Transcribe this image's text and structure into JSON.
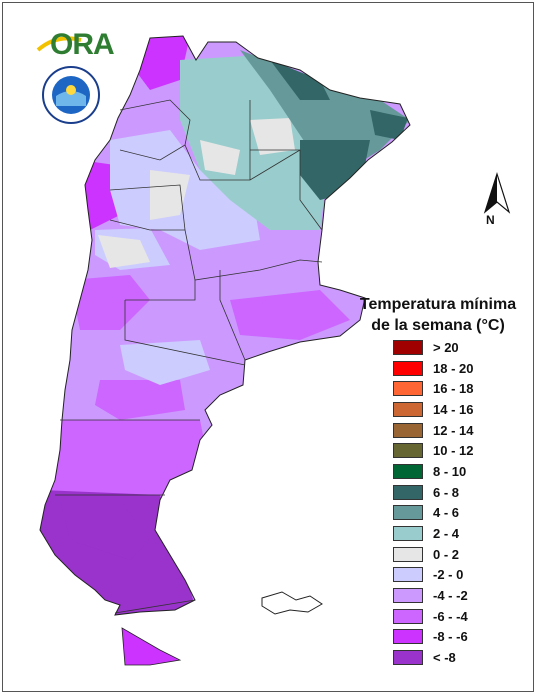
{
  "map": {
    "logo_text": "ORA",
    "north_label": "N",
    "legend_title_line1": "Temperatura mínima",
    "legend_title_line2": "de la semana (°C)",
    "legend": [
      {
        "label": "> 20",
        "color": "#a00000"
      },
      {
        "label": "18 - 20",
        "color": "#ff0000"
      },
      {
        "label": "16 - 18",
        "color": "#ff6633"
      },
      {
        "label": "14 - 16",
        "color": "#cc6633"
      },
      {
        "label": "12 - 14",
        "color": "#996633"
      },
      {
        "label": "10 - 12",
        "color": "#666633"
      },
      {
        "label": "8 - 10",
        "color": "#006633"
      },
      {
        "label": "6 - 8",
        "color": "#336666"
      },
      {
        "label": "4 - 6",
        "color": "#669999"
      },
      {
        "label": "2 - 4",
        "color": "#99cccc"
      },
      {
        "label": "0 - 2",
        "color": "#e6e6e6"
      },
      {
        "label": "-2 - 0",
        "color": "#ccccff"
      },
      {
        "label": "-4 - -2",
        "color": "#cc99ff"
      },
      {
        "label": "-6 - -4",
        "color": "#cc66ff"
      },
      {
        "label": "-8 - -6",
        "color": "#cc33ff"
      },
      {
        "label": "< -8",
        "color": "#9933cc"
      }
    ],
    "colors": {
      "lt_m8": "#9933cc",
      "m8_m6": "#cc33ff",
      "m6_m4": "#cc66ff",
      "m4_m2": "#cc99ff",
      "m2_0": "#ccccff",
      "z0_2": "#e6e6e6",
      "p2_4": "#99cccc",
      "p4_6": "#669999",
      "p6_8": "#336666"
    }
  }
}
